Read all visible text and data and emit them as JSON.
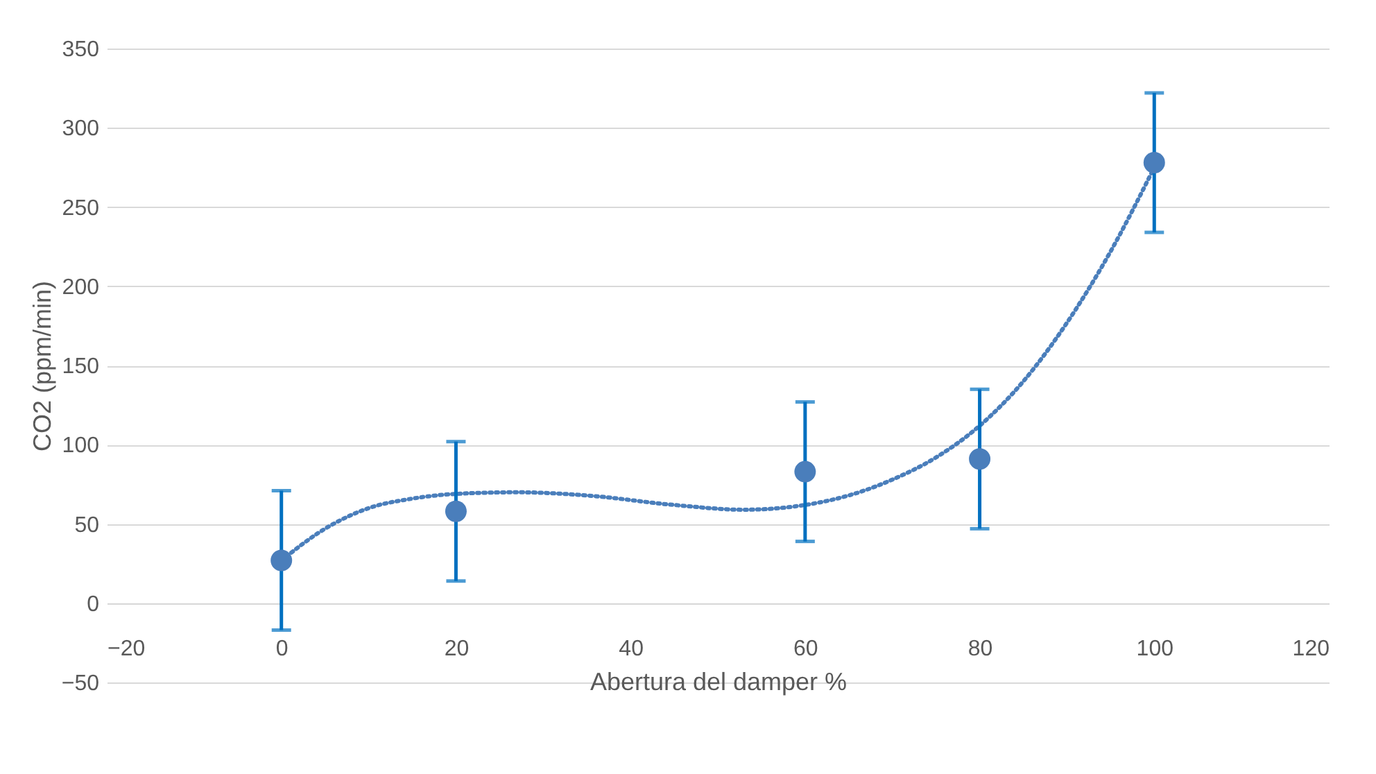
{
  "chart_data": {
    "type": "scatter",
    "xlabel": "Abertura del damper %",
    "ylabel": "CO2 (ppm/min)",
    "x": [
      0,
      20,
      60,
      80,
      100
    ],
    "series": [
      {
        "color": "#4a7ebb",
        "marker": "circle",
        "values": [
          27,
          58,
          83,
          91,
          278
        ],
        "errors": [
          44,
          44,
          44,
          44,
          44
        ]
      },
      {
        "type": "line",
        "color": "#4a7ebb",
        "line_style": "dotted",
        "x": [
          0,
          5,
          10,
          15,
          20,
          27,
          35,
          45,
          53,
          60,
          65,
          70,
          75,
          80,
          85,
          90,
          95,
          100
        ],
        "values": [
          27,
          47,
          60,
          66,
          69,
          70,
          68,
          62,
          59,
          62,
          68,
          78,
          92,
          112,
          140,
          177,
          222,
          275
        ]
      }
    ],
    "xlim": [
      -20,
      120
    ],
    "xticks": [
      -20,
      0,
      20,
      40,
      60,
      80,
      100,
      120
    ],
    "ylim": [
      -50,
      350
    ],
    "yticks": [
      -50,
      0,
      50,
      100,
      150,
      200,
      250,
      300,
      350
    ],
    "grid": "y"
  }
}
